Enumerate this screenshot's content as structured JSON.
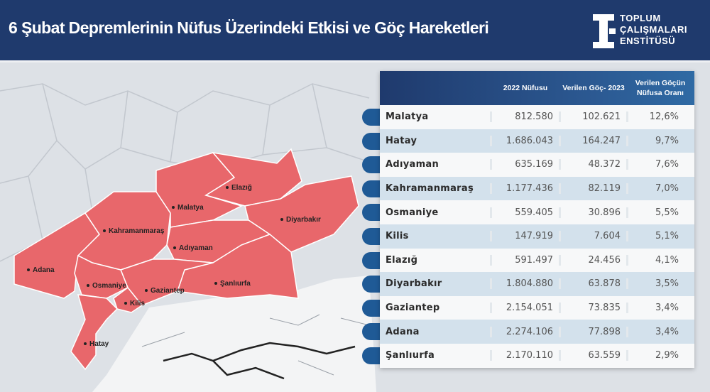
{
  "header": {
    "title": "6 Şubat Depremlerinin Nüfus Üzerindeki Etkisi ve Göç Hareketleri",
    "logo": {
      "lines": [
        "TOPLUM",
        "ÇALIŞMALARI",
        "ENSTİTÜSÜ"
      ]
    }
  },
  "colors": {
    "header": "#1f3a6d",
    "affected": "#e8676b",
    "accent": "#1f5a96"
  },
  "map": {
    "labels": [
      "Elazığ",
      "Malatya",
      "Diyarbakır",
      "Kahramanmaraş",
      "Adıyaman",
      "Adana",
      "Şanlıurfa",
      "Osmaniye",
      "Gaziantep",
      "Kilis",
      "Hatay"
    ]
  },
  "table": {
    "columns": [
      "",
      "2022 Nüfusu",
      "Verilen Göç- 2023",
      "Verilen Göçün Nüfusa Oranı"
    ],
    "rows": [
      [
        "Malatya",
        "812.580",
        "102.621",
        "12,6%"
      ],
      [
        "Hatay",
        "1.686.043",
        "164.247",
        "9,7%"
      ],
      [
        "Adıyaman",
        "635.169",
        "48.372",
        "7,6%"
      ],
      [
        "Kahramanmaraş",
        "1.177.436",
        "82.119",
        "7,0%"
      ],
      [
        "Osmaniye",
        "559.405",
        "30.896",
        "5,5%"
      ],
      [
        "Kilis",
        "147.919",
        "7.604",
        "5,1%"
      ],
      [
        "Elazığ",
        "591.497",
        "24.456",
        "4,1%"
      ],
      [
        "Diyarbakır",
        "1.804.880",
        "63.878",
        "3,5%"
      ],
      [
        "Gaziantep",
        "2.154.051",
        "73.835",
        "3,4%"
      ],
      [
        "Adana",
        "2.274.106",
        "77.898",
        "3,4%"
      ],
      [
        "Şanlıurfa",
        "2.170.110",
        "63.559",
        "2,9%"
      ]
    ]
  }
}
